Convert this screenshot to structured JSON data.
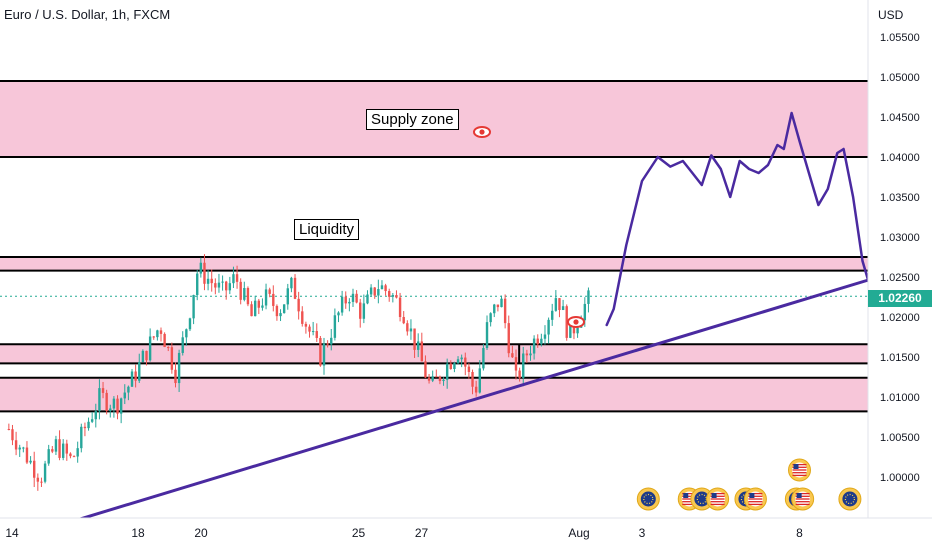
{
  "header": {
    "title": "Euro / U.S. Dollar, 1h, FXCM"
  },
  "axis": {
    "currency": "USD"
  },
  "current_price": {
    "label": "1.02260",
    "color": "#22ab94"
  },
  "annotations": {
    "supply": "Supply zone",
    "liquidity": "Liquidity"
  },
  "chart_data": {
    "type": "candlestick",
    "title": "Euro / U.S. Dollar, 1h, FXCM",
    "ylabel": "USD",
    "ylim": [
      0.9945,
      1.0575
    ],
    "y_ticks": [
      "1.05500",
      "1.05000",
      "1.04500",
      "1.04000",
      "1.03500",
      "1.03000",
      "1.02500",
      "1.02000",
      "1.01500",
      "1.01000",
      "1.00500",
      "1.00000"
    ],
    "x_ticks": [
      "14",
      "18",
      "20",
      "25",
      "27",
      "Aug",
      "3",
      "8"
    ],
    "x_ticks_day": [
      14,
      18,
      20,
      25,
      27,
      32,
      34,
      39
    ],
    "current_price": 1.0226,
    "zones": [
      {
        "name": "supply-zone",
        "low": 1.04,
        "high": 1.0495,
        "color": "#f7c6d9"
      },
      {
        "name": "liquidity-zone",
        "low": 1.0258,
        "high": 1.0275,
        "color": "#f7c6d9"
      },
      {
        "name": "mid-zone",
        "low": 1.0142,
        "high": 1.0166,
        "color": "#f7c6d9"
      },
      {
        "name": "demand-zone",
        "low": 1.0082,
        "high": 1.0124,
        "color": "#f7c6d9"
      }
    ],
    "trendline": {
      "from": [
        15.7,
        0.9942
      ],
      "to": [
        41.5,
        1.025
      ],
      "color": "#4a2aa0"
    },
    "price_path": [
      {
        "day": 13.9,
        "price": 1.006
      },
      {
        "day": 14.4,
        "price": 1.003
      },
      {
        "day": 14.9,
        "price": 1.0
      },
      {
        "day": 15.4,
        "price": 1.004
      },
      {
        "day": 15.9,
        "price": 1.002
      },
      {
        "day": 16.3,
        "price": 1.006
      },
      {
        "day": 16.8,
        "price": 1.01
      },
      {
        "day": 17.3,
        "price": 1.009
      },
      {
        "day": 17.8,
        "price": 1.012
      },
      {
        "day": 18.3,
        "price": 1.016
      },
      {
        "day": 18.7,
        "price": 1.019
      },
      {
        "day": 19.2,
        "price": 1.013
      },
      {
        "day": 19.6,
        "price": 1.02
      },
      {
        "day": 19.9,
        "price": 1.026
      },
      {
        "day": 20.3,
        "price": 1.0245
      },
      {
        "day": 20.7,
        "price": 1.023
      },
      {
        "day": 21.1,
        "price": 1.025
      },
      {
        "day": 21.6,
        "price": 1.02
      },
      {
        "day": 22.0,
        "price": 1.0225
      },
      {
        "day": 22.5,
        "price": 1.021
      },
      {
        "day": 22.9,
        "price": 1.024
      },
      {
        "day": 23.3,
        "price": 1.0195
      },
      {
        "day": 23.8,
        "price": 1.015
      },
      {
        "day": 24.2,
        "price": 1.019
      },
      {
        "day": 24.7,
        "price": 1.023
      },
      {
        "day": 25.1,
        "price": 1.0205
      },
      {
        "day": 25.6,
        "price": 1.024
      },
      {
        "day": 26.0,
        "price": 1.023
      },
      {
        "day": 26.4,
        "price": 1.021
      },
      {
        "day": 26.9,
        "price": 1.0155
      },
      {
        "day": 27.3,
        "price": 1.011
      },
      {
        "day": 27.8,
        "price": 1.014
      },
      {
        "day": 28.2,
        "price": 1.016
      },
      {
        "day": 28.7,
        "price": 1.0105
      },
      {
        "day": 29.1,
        "price": 1.019
      },
      {
        "day": 29.5,
        "price": 1.0225
      },
      {
        "day": 30.0,
        "price": 1.012
      },
      {
        "day": 30.4,
        "price": 1.016
      },
      {
        "day": 30.9,
        "price": 1.019
      },
      {
        "day": 31.3,
        "price": 1.023
      },
      {
        "day": 31.7,
        "price": 1.0175
      },
      {
        "day": 32.1,
        "price": 1.021
      },
      {
        "day": 32.4,
        "price": 1.0226
      }
    ],
    "projection": [
      [
        32.88,
        1.019
      ],
      [
        33.1,
        1.021
      ],
      [
        33.5,
        1.029
      ],
      [
        34.0,
        1.037
      ],
      [
        34.5,
        1.04
      ],
      [
        34.9,
        1.0388
      ],
      [
        35.3,
        1.0395
      ],
      [
        35.6,
        1.038
      ],
      [
        35.9,
        1.0365
      ],
      [
        36.2,
        1.0402
      ],
      [
        36.5,
        1.0385
      ],
      [
        36.8,
        1.035
      ],
      [
        37.1,
        1.0395
      ],
      [
        37.4,
        1.0385
      ],
      [
        37.7,
        1.038
      ],
      [
        38.0,
        1.039
      ],
      [
        38.3,
        1.0415
      ],
      [
        38.5,
        1.041
      ],
      [
        38.75,
        1.0455
      ],
      [
        39.0,
        1.042
      ],
      [
        39.3,
        1.038
      ],
      [
        39.6,
        1.034
      ],
      [
        39.9,
        1.036
      ],
      [
        40.2,
        1.0405
      ],
      [
        40.4,
        1.041
      ],
      [
        40.7,
        1.035
      ],
      [
        41.0,
        1.027
      ],
      [
        41.3,
        1.023
      ],
      [
        41.6,
        1.0175
      ]
    ],
    "event_icons_day": [
      34.2,
      35.5,
      35.9,
      36.4,
      37.3,
      37.6,
      38.9,
      39.1,
      40.6
    ]
  }
}
